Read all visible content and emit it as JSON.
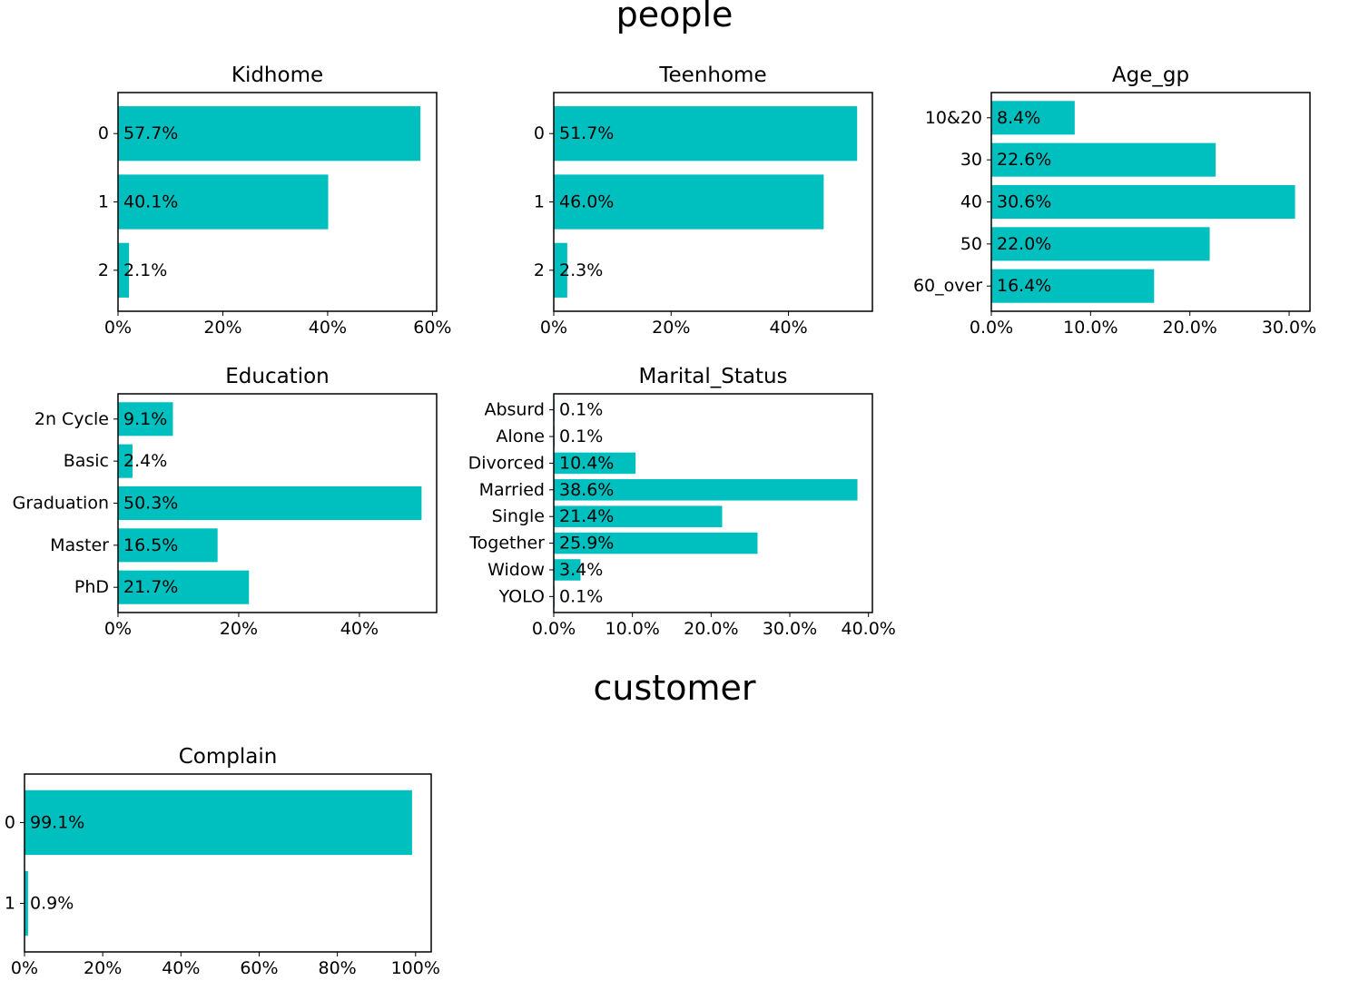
{
  "section_titles": {
    "people": "people",
    "customer": "customer"
  },
  "colors": {
    "bar": "#00bfbf",
    "axis": "#000000",
    "text": "#000000"
  },
  "chart_data": [
    {
      "type": "bar",
      "orientation": "horizontal",
      "title": "Kidhome",
      "categories": [
        "0",
        "1",
        "2"
      ],
      "values": [
        57.7,
        40.1,
        2.1
      ],
      "labels": [
        "57.7%",
        "40.1%",
        "2.1%"
      ],
      "xlim": [
        0,
        60.8
      ],
      "xticks": [
        0,
        20,
        40,
        60
      ],
      "xtick_labels": [
        "0%",
        "20%",
        "40%",
        "60%"
      ]
    },
    {
      "type": "bar",
      "orientation": "horizontal",
      "title": "Teenhome",
      "categories": [
        "0",
        "1",
        "2"
      ],
      "values": [
        51.7,
        46.0,
        2.3
      ],
      "labels": [
        "51.7%",
        "46.0%",
        "2.3%"
      ],
      "xlim": [
        0,
        54.3
      ],
      "xticks": [
        0,
        20,
        40
      ],
      "xtick_labels": [
        "0%",
        "20%",
        "40%"
      ]
    },
    {
      "type": "bar",
      "orientation": "horizontal",
      "title": "Age_gp",
      "categories": [
        "10&20",
        "30",
        "40",
        "50",
        "60_over"
      ],
      "values": [
        8.4,
        22.6,
        30.6,
        22.0,
        16.4
      ],
      "labels": [
        "8.4%",
        "22.6%",
        "30.6%",
        "22.0%",
        "16.4%"
      ],
      "xlim": [
        0,
        32.1
      ],
      "xticks": [
        0,
        10,
        20,
        30
      ],
      "xtick_labels": [
        "0.0%",
        "10.0%",
        "20.0%",
        "30.0%"
      ]
    },
    {
      "type": "bar",
      "orientation": "horizontal",
      "title": "Education",
      "categories": [
        "2n Cycle",
        "Basic",
        "Graduation",
        "Master",
        "PhD"
      ],
      "values": [
        9.1,
        2.4,
        50.3,
        16.5,
        21.7
      ],
      "labels": [
        "9.1%",
        "2.4%",
        "50.3%",
        "16.5%",
        "21.7%"
      ],
      "xlim": [
        0,
        52.8
      ],
      "xticks": [
        0,
        20,
        40
      ],
      "xtick_labels": [
        "0%",
        "20%",
        "40%"
      ]
    },
    {
      "type": "bar",
      "orientation": "horizontal",
      "title": "Marital_Status",
      "categories": [
        "Absurd",
        "Alone",
        "Divorced",
        "Married",
        "Single",
        "Together",
        "Widow",
        "YOLO"
      ],
      "values": [
        0.1,
        0.1,
        10.4,
        38.6,
        21.4,
        25.9,
        3.4,
        0.1
      ],
      "labels": [
        "0.1%",
        "0.1%",
        "10.4%",
        "38.6%",
        "21.4%",
        "25.9%",
        "3.4%",
        "0.1%"
      ],
      "xlim": [
        0,
        40.5
      ],
      "xticks": [
        0,
        10,
        20,
        30,
        40
      ],
      "xtick_labels": [
        "0.0%",
        "10.0%",
        "20.0%",
        "30.0%",
        "40.0%"
      ]
    },
    {
      "type": "bar",
      "orientation": "horizontal",
      "title": "Complain",
      "categories": [
        "0",
        "1"
      ],
      "values": [
        99.1,
        0.9
      ],
      "labels": [
        "99.1%",
        "0.9%"
      ],
      "xlim": [
        0,
        104
      ],
      "xticks": [
        0,
        20,
        40,
        60,
        80,
        100
      ],
      "xtick_labels": [
        "0%",
        "20%",
        "40%",
        "60%",
        "80%",
        "100%"
      ]
    }
  ]
}
